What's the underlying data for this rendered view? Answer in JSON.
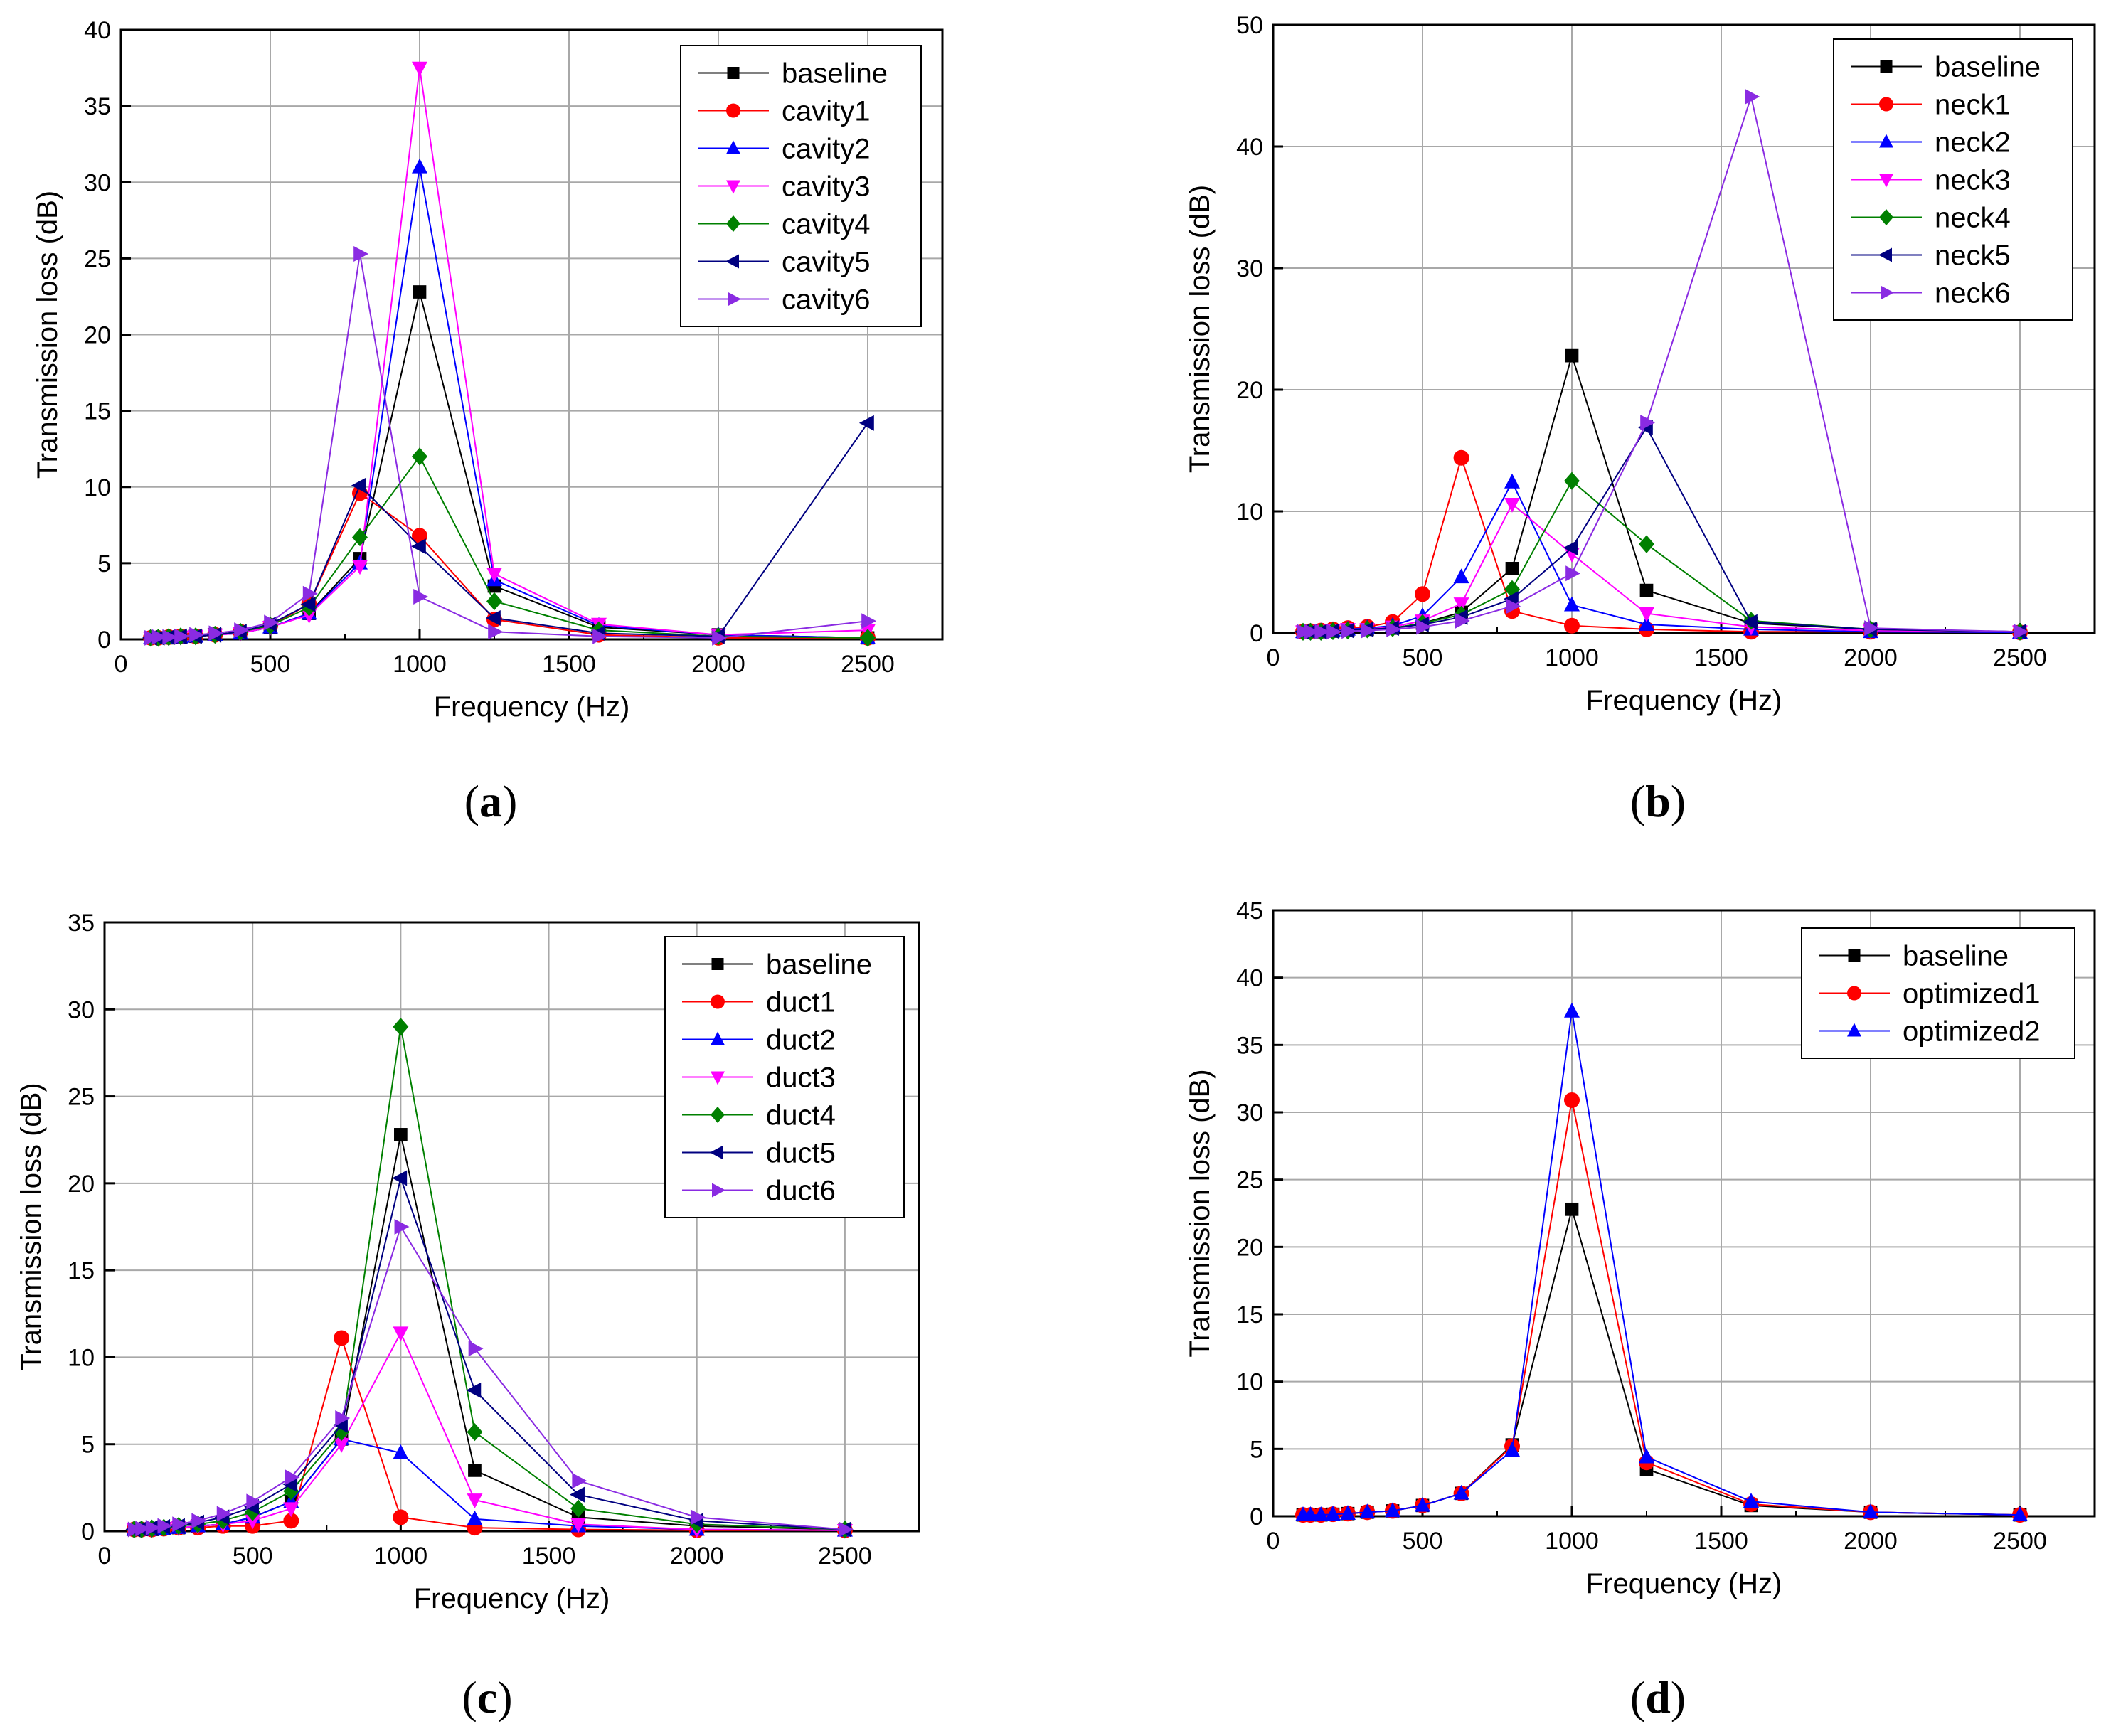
{
  "chart_data": [
    {
      "type": "line",
      "panel_label": "(a)",
      "panel_letter": "a",
      "xlabel": "Frequency (Hz)",
      "ylabel": "Transmission loss (dB)",
      "xlim": [
        0,
        2750
      ],
      "ylim": [
        0,
        40
      ],
      "xticks": [
        0,
        500,
        1000,
        1500,
        2000,
        2500
      ],
      "yticks": [
        0,
        5,
        10,
        15,
        20,
        25,
        30,
        35,
        40
      ],
      "grid": true,
      "legend_position": "top-right",
      "x": [
        100,
        125,
        160,
        200,
        250,
        315,
        400,
        500,
        630,
        800,
        1000,
        1250,
        1600,
        2000,
        2500
      ],
      "series": [
        {
          "name": "baseline",
          "color": "#000000",
          "marker": "square",
          "values": [
            0.1,
            0.1,
            0.1,
            0.15,
            0.2,
            0.3,
            0.4,
            0.8,
            1.7,
            5.3,
            22.8,
            3.5,
            0.8,
            0.3,
            0.1
          ]
        },
        {
          "name": "cavity1",
          "color": "#ff0000",
          "marker": "circle",
          "values": [
            0.1,
            0.1,
            0.15,
            0.2,
            0.2,
            0.3,
            0.5,
            0.9,
            2.3,
            9.6,
            6.8,
            1.3,
            0.3,
            0.1,
            0.1
          ]
        },
        {
          "name": "cavity2",
          "color": "#0000ff",
          "marker": "triangle-up",
          "values": [
            0.1,
            0.1,
            0.1,
            0.15,
            0.2,
            0.3,
            0.4,
            0.8,
            1.7,
            5.0,
            31.0,
            3.9,
            0.9,
            0.3,
            0.1
          ]
        },
        {
          "name": "cavity3",
          "color": "#ff00ff",
          "marker": "triangle-down",
          "values": [
            0.1,
            0.1,
            0.1,
            0.15,
            0.2,
            0.3,
            0.4,
            0.8,
            1.6,
            4.8,
            37.5,
            4.3,
            1.0,
            0.3,
            0.6
          ]
        },
        {
          "name": "cavity4",
          "color": "#008000",
          "marker": "diamond",
          "values": [
            0.1,
            0.1,
            0.15,
            0.2,
            0.2,
            0.3,
            0.5,
            0.9,
            2.1,
            6.7,
            12.0,
            2.5,
            0.6,
            0.2,
            0.1
          ]
        },
        {
          "name": "cavity5",
          "color": "#000080",
          "marker": "triangle-left",
          "values": [
            0.1,
            0.1,
            0.15,
            0.2,
            0.2,
            0.3,
            0.5,
            1.0,
            2.3,
            10.1,
            6.1,
            1.4,
            0.4,
            0.2,
            14.2
          ]
        },
        {
          "name": "cavity6",
          "color": "#8a2be2",
          "marker": "triangle-right",
          "values": [
            0.1,
            0.15,
            0.15,
            0.2,
            0.3,
            0.4,
            0.6,
            1.1,
            3.0,
            25.3,
            2.8,
            0.5,
            0.2,
            0.1,
            1.2
          ]
        }
      ]
    },
    {
      "type": "line",
      "panel_label": "(b)",
      "panel_letter": "b",
      "xlabel": "Frequency (Hz)",
      "ylabel": "Transmission loss (dB)",
      "xlim": [
        0,
        2750
      ],
      "ylim": [
        0,
        50
      ],
      "xticks": [
        0,
        500,
        1000,
        1500,
        2000,
        2500
      ],
      "yticks": [
        0,
        10,
        20,
        30,
        40,
        50
      ],
      "grid": true,
      "legend_position": "top-right",
      "x": [
        100,
        125,
        160,
        200,
        250,
        315,
        400,
        500,
        630,
        800,
        1000,
        1250,
        1600,
        2000,
        2500
      ],
      "series": [
        {
          "name": "baseline",
          "color": "#000000",
          "marker": "square",
          "values": [
            0.1,
            0.1,
            0.1,
            0.15,
            0.2,
            0.3,
            0.4,
            0.8,
            1.7,
            5.3,
            22.8,
            3.5,
            0.8,
            0.3,
            0.1
          ]
        },
        {
          "name": "neck1",
          "color": "#ff0000",
          "marker": "circle",
          "values": [
            0.1,
            0.15,
            0.2,
            0.3,
            0.4,
            0.5,
            0.9,
            3.2,
            14.4,
            1.8,
            0.6,
            0.3,
            0.1,
            0.1,
            0.05
          ]
        },
        {
          "name": "neck2",
          "color": "#0000ff",
          "marker": "triangle-up",
          "values": [
            0.1,
            0.1,
            0.15,
            0.2,
            0.3,
            0.4,
            0.6,
            1.4,
            4.6,
            12.4,
            2.3,
            0.7,
            0.3,
            0.1,
            0.05
          ]
        },
        {
          "name": "neck3",
          "color": "#ff00ff",
          "marker": "triangle-down",
          "values": [
            0.1,
            0.1,
            0.15,
            0.2,
            0.3,
            0.3,
            0.5,
            1.0,
            2.4,
            10.6,
            6.5,
            1.6,
            0.5,
            0.2,
            0.1
          ]
        },
        {
          "name": "neck4",
          "color": "#008000",
          "marker": "diamond",
          "values": [
            0.1,
            0.1,
            0.1,
            0.15,
            0.2,
            0.3,
            0.4,
            0.8,
            1.5,
            3.6,
            12.5,
            7.3,
            1.0,
            0.3,
            0.1
          ]
        },
        {
          "name": "neck5",
          "color": "#000080",
          "marker": "triangle-left",
          "values": [
            0.1,
            0.1,
            0.1,
            0.15,
            0.2,
            0.3,
            0.4,
            0.7,
            1.3,
            2.8,
            7.0,
            16.9,
            0.9,
            0.3,
            0.1
          ]
        },
        {
          "name": "neck6",
          "color": "#8a2be2",
          "marker": "triangle-right",
          "values": [
            0.1,
            0.1,
            0.1,
            0.1,
            0.15,
            0.2,
            0.3,
            0.5,
            1.0,
            2.2,
            4.9,
            17.3,
            44.1,
            0.4,
            0.1
          ]
        }
      ]
    },
    {
      "type": "line",
      "panel_label": "(c)",
      "panel_letter": "c",
      "xlabel": "Frequency (Hz)",
      "ylabel": "Transmission loss (dB)",
      "xlim": [
        0,
        2750
      ],
      "ylim": [
        0,
        35
      ],
      "xticks": [
        0,
        500,
        1000,
        1500,
        2000,
        2500
      ],
      "yticks": [
        0,
        5,
        10,
        15,
        20,
        25,
        30,
        35
      ],
      "grid": true,
      "legend_position": "top-right",
      "x": [
        100,
        125,
        160,
        200,
        250,
        315,
        400,
        500,
        630,
        800,
        1000,
        1250,
        1600,
        2000,
        2500
      ],
      "series": [
        {
          "name": "baseline",
          "color": "#000000",
          "marker": "square",
          "values": [
            0.1,
            0.1,
            0.1,
            0.15,
            0.2,
            0.3,
            0.4,
            0.8,
            1.7,
            5.3,
            22.8,
            3.5,
            0.8,
            0.3,
            0.1
          ]
        },
        {
          "name": "duct1",
          "color": "#ff0000",
          "marker": "circle",
          "values": [
            0.1,
            0.1,
            0.1,
            0.15,
            0.2,
            0.2,
            0.3,
            0.3,
            0.6,
            11.1,
            0.8,
            0.2,
            0.1,
            0.05,
            0.05
          ]
        },
        {
          "name": "duct2",
          "color": "#0000ff",
          "marker": "triangle-up",
          "values": [
            0.1,
            0.1,
            0.1,
            0.15,
            0.2,
            0.3,
            0.4,
            0.8,
            1.7,
            5.3,
            4.5,
            0.7,
            0.3,
            0.1,
            0.05
          ]
        },
        {
          "name": "duct3",
          "color": "#ff00ff",
          "marker": "triangle-down",
          "values": [
            0.1,
            0.1,
            0.1,
            0.15,
            0.2,
            0.3,
            0.4,
            0.6,
            1.3,
            5.0,
            11.4,
            1.8,
            0.4,
            0.1,
            0.05
          ]
        },
        {
          "name": "duct4",
          "color": "#008000",
          "marker": "diamond",
          "values": [
            0.1,
            0.1,
            0.15,
            0.2,
            0.3,
            0.4,
            0.6,
            1.1,
            2.3,
            5.7,
            29.0,
            5.7,
            1.3,
            0.4,
            0.1
          ]
        },
        {
          "name": "duct5",
          "color": "#000080",
          "marker": "triangle-left",
          "values": [
            0.1,
            0.15,
            0.2,
            0.25,
            0.3,
            0.5,
            0.8,
            1.4,
            2.7,
            6.1,
            20.3,
            8.1,
            2.1,
            0.6,
            0.1
          ]
        },
        {
          "name": "duct6",
          "color": "#8a2be2",
          "marker": "triangle-right",
          "values": [
            0.1,
            0.15,
            0.2,
            0.3,
            0.4,
            0.6,
            1.0,
            1.7,
            3.1,
            6.5,
            17.5,
            10.5,
            2.9,
            0.8,
            0.1
          ]
        }
      ]
    },
    {
      "type": "line",
      "panel_label": "(d)",
      "panel_letter": "d",
      "xlabel": "Frequency (Hz)",
      "ylabel": "Transmission loss (dB)",
      "xlim": [
        0,
        2750
      ],
      "ylim": [
        0,
        45
      ],
      "xticks": [
        0,
        500,
        1000,
        1500,
        2000,
        2500
      ],
      "yticks": [
        0,
        5,
        10,
        15,
        20,
        25,
        30,
        35,
        40,
        45
      ],
      "grid": true,
      "legend_position": "top-right",
      "x": [
        100,
        125,
        160,
        200,
        250,
        315,
        400,
        500,
        630,
        800,
        1000,
        1250,
        1600,
        2000,
        2500
      ],
      "series": [
        {
          "name": "baseline",
          "color": "#000000",
          "marker": "square",
          "values": [
            0.1,
            0.1,
            0.1,
            0.15,
            0.2,
            0.3,
            0.4,
            0.8,
            1.7,
            5.3,
            22.8,
            3.5,
            0.8,
            0.3,
            0.1
          ]
        },
        {
          "name": "optimized1",
          "color": "#ff0000",
          "marker": "circle",
          "values": [
            0.1,
            0.1,
            0.1,
            0.15,
            0.2,
            0.3,
            0.4,
            0.8,
            1.7,
            5.2,
            30.9,
            4.0,
            0.9,
            0.3,
            0.1
          ]
        },
        {
          "name": "optimized2",
          "color": "#0000ff",
          "marker": "triangle-up",
          "values": [
            0.1,
            0.1,
            0.1,
            0.15,
            0.2,
            0.3,
            0.4,
            0.8,
            1.7,
            4.9,
            37.5,
            4.4,
            1.1,
            0.3,
            0.1
          ]
        }
      ]
    }
  ]
}
